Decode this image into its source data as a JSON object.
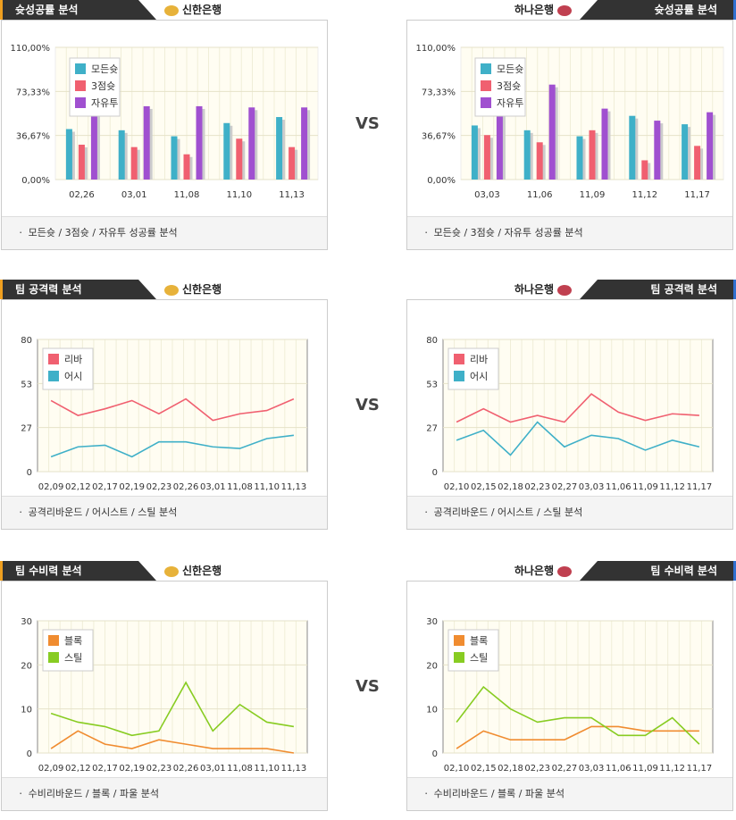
{
  "vs_label": "VS",
  "teams": {
    "left": "신한은행",
    "right": "하나은행"
  },
  "colors": {
    "header_bg": "#333333",
    "left_accent": "#f0a020",
    "right_accent": "#3070d0"
  },
  "sections": [
    {
      "title": "슛성공률 분석",
      "caption": "ㆍ 모든슛 / 3점슛 / 자유투 성공률 분석",
      "left_caption": "ㆍ 모든슛 / 3점슛 / 자유투 성공률 분석",
      "right_caption": "ㆍ 모든슛 / 3점슛 / 자유투 성공률 분석"
    },
    {
      "title": "팀 공격력 분석",
      "left_caption": "ㆍ 공격리바운드 / 어시스트 / 스틸 분석",
      "right_caption": "ㆍ 공격리바운드 / 어시스트 / 스틸 분석"
    },
    {
      "title": "팀 수비력 분석",
      "left_caption": "ㆍ 수비리바운드 / 블록 / 파울 분석",
      "right_caption": "ㆍ 수비리바운드 / 블록 / 파울 분석"
    }
  ],
  "chart_data": [
    {
      "id": "shoot-left",
      "type": "bar",
      "categories": [
        "02,26",
        "03,01",
        "11,08",
        "11,10",
        "11,13"
      ],
      "yticks": [
        "0,00%",
        "36,67%",
        "73,33%",
        "110,00%"
      ],
      "ylim": [
        0,
        110
      ],
      "legend": "top-left",
      "grid": true,
      "series": [
        {
          "name": "모든슛",
          "color": "#3fb0c8",
          "values": [
            42,
            41,
            36,
            47,
            52
          ]
        },
        {
          "name": "3점슛",
          "color": "#f06070",
          "values": [
            29,
            27,
            21,
            34,
            27
          ]
        },
        {
          "name": "자유투",
          "color": "#a050d0",
          "values": [
            60,
            61,
            61,
            60,
            60
          ]
        }
      ]
    },
    {
      "id": "shoot-right",
      "type": "bar",
      "categories": [
        "03,03",
        "11,06",
        "11,09",
        "11,12",
        "11,17"
      ],
      "yticks": [
        "0,00%",
        "36,67%",
        "73,33%",
        "110,00%"
      ],
      "ylim": [
        0,
        110
      ],
      "legend": "top-left",
      "grid": true,
      "series": [
        {
          "name": "모든슛",
          "color": "#3fb0c8",
          "values": [
            45,
            41,
            36,
            53,
            46
          ]
        },
        {
          "name": "3점슛",
          "color": "#f06070",
          "values": [
            37,
            31,
            41,
            16,
            28
          ]
        },
        {
          "name": "자유투",
          "color": "#a050d0",
          "values": [
            60,
            79,
            59,
            49,
            56
          ]
        }
      ]
    },
    {
      "id": "attack-left",
      "type": "line",
      "categories": [
        "02,09",
        "02,12",
        "02,17",
        "02,19",
        "02,23",
        "02,26",
        "03,01",
        "11,08",
        "11,10",
        "11,13"
      ],
      "yticks": [
        "0",
        "27",
        "53",
        "80"
      ],
      "ylim": [
        0,
        80
      ],
      "legend": "top-left",
      "grid": true,
      "series": [
        {
          "name": "리바",
          "color": "#f06070",
          "values": [
            43,
            34,
            38,
            43,
            35,
            44,
            31,
            35,
            37,
            44
          ]
        },
        {
          "name": "어시",
          "color": "#3fb0c8",
          "values": [
            9,
            15,
            16,
            9,
            18,
            18,
            15,
            14,
            20,
            22
          ]
        }
      ]
    },
    {
      "id": "attack-right",
      "type": "line",
      "categories": [
        "02,10",
        "02,15",
        "02,18",
        "02,23",
        "02,27",
        "03,03",
        "11,06",
        "11,09",
        "11,12",
        "11,17"
      ],
      "yticks": [
        "0",
        "27",
        "53",
        "80"
      ],
      "ylim": [
        0,
        80
      ],
      "legend": "top-left",
      "grid": true,
      "series": [
        {
          "name": "리바",
          "color": "#f06070",
          "values": [
            30,
            38,
            30,
            34,
            30,
            47,
            36,
            31,
            35,
            34
          ]
        },
        {
          "name": "어시",
          "color": "#3fb0c8",
          "values": [
            19,
            25,
            10,
            30,
            15,
            22,
            20,
            13,
            19,
            15
          ]
        }
      ]
    },
    {
      "id": "defense-left",
      "type": "line",
      "categories": [
        "02,09",
        "02,12",
        "02,17",
        "02,19",
        "02,23",
        "02,26",
        "03,01",
        "11,08",
        "11,10",
        "11,13"
      ],
      "yticks": [
        "0",
        "10",
        "20",
        "30"
      ],
      "ylim": [
        0,
        30
      ],
      "legend": "top-left",
      "grid": true,
      "series": [
        {
          "name": "블록",
          "color": "#f08c30",
          "values": [
            1,
            5,
            2,
            1,
            3,
            2,
            1,
            1,
            1,
            0
          ]
        },
        {
          "name": "스틸",
          "color": "#88cc22",
          "values": [
            9,
            7,
            6,
            4,
            5,
            16,
            5,
            11,
            7,
            6
          ]
        }
      ]
    },
    {
      "id": "defense-right",
      "type": "line",
      "categories": [
        "02,10",
        "02,15",
        "02,18",
        "02,23",
        "02,27",
        "03,03",
        "11,06",
        "11,09",
        "11,12",
        "11,17"
      ],
      "yticks": [
        "0",
        "10",
        "20",
        "30"
      ],
      "ylim": [
        0,
        30
      ],
      "legend": "top-left",
      "grid": true,
      "series": [
        {
          "name": "블록",
          "color": "#f08c30",
          "values": [
            1,
            5,
            3,
            3,
            3,
            6,
            6,
            5,
            5,
            5
          ]
        },
        {
          "name": "스틸",
          "color": "#88cc22",
          "values": [
            7,
            15,
            10,
            7,
            8,
            8,
            4,
            4,
            8,
            2
          ]
        }
      ]
    }
  ]
}
